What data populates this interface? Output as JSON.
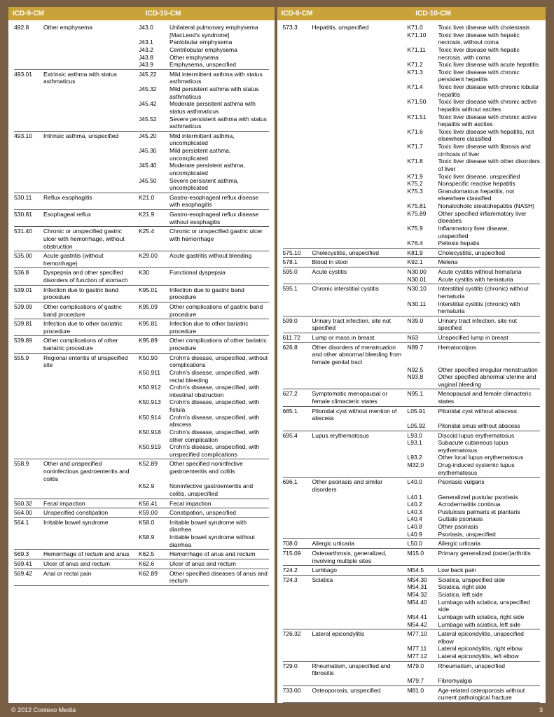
{
  "headers": {
    "icd9": "ICD-9-CM",
    "icd10": "ICD-10-CM"
  },
  "footer": {
    "copyright": "© 2012 Contexo Media",
    "page": "3"
  },
  "left": [
    {
      "icd9": "492.8",
      "icd9d": "Other emphysema",
      "map": [
        [
          "J43.0",
          "Unilateral pulmonary emphysema [MacLeod's syndrome]"
        ],
        [
          "J43.1",
          "Panlobular emphysema"
        ],
        [
          "J43.2",
          "Centrilobular emphysema"
        ],
        [
          "J43.8",
          "Other emphysema"
        ],
        [
          "J43.9",
          "Emphysema, unspecified"
        ]
      ]
    },
    {
      "icd9": "493.01",
      "icd9d": "Extrinsic asthma with status asthmaticus",
      "map": [
        [
          "J45.22",
          "Mild intermittent asthma with status asthmaticus"
        ],
        [
          "J45.32",
          "Mild persistent asthma with status asthmaticus"
        ],
        [
          "J45.42",
          "Moderate persistent asthma with status asthmaticus"
        ],
        [
          "J45.52",
          "Severe persistent asthma with status asthmaticus"
        ]
      ]
    },
    {
      "icd9": "493.10",
      "icd9d": "Intrinsic asthma, unspecified",
      "map": [
        [
          "J45.20",
          "Mild intermittent asthma, uncomplicated"
        ],
        [
          "J45.30",
          "Mild persistent asthma, uncomplicated"
        ],
        [
          "J45.40",
          "Moderate persistent asthma, uncomplicated"
        ],
        [
          "J45.50",
          "Severe persistent asthma, uncomplicated"
        ]
      ]
    },
    {
      "icd9": "530.11",
      "icd9d": "Reflux esophagitis",
      "map": [
        [
          "K21.0",
          "Gastro-esophageal reflux disease with esophagitis"
        ]
      ]
    },
    {
      "icd9": "530.81",
      "icd9d": "Esophageal reflux",
      "map": [
        [
          "K21.9",
          "Gastro-esophageal reflux disease without esophagitis"
        ]
      ]
    },
    {
      "icd9": "531.40",
      "icd9d": "Chronic or unspecified gastric ulcer with hemorrhage, without obstruction",
      "map": [
        [
          "K25.4",
          "Chronic or unspecified gastric ulcer with hemorrhage"
        ]
      ]
    },
    {
      "icd9": "535.00",
      "icd9d": "Acute gastritis (without hemorrhage)",
      "map": [
        [
          "K29.00",
          "Acute gastritis without bleeding"
        ]
      ]
    },
    {
      "icd9": "536.8",
      "icd9d": "Dyspepsia and other specified disorders of function of stomach",
      "map": [
        [
          "K30",
          "Functional dyspepsia"
        ]
      ]
    },
    {
      "icd9": "539.01",
      "icd9d": "Infection due to gastric band procedure",
      "map": [
        [
          "K95.01",
          "Infection due to gastric band procedure"
        ]
      ]
    },
    {
      "icd9": "539.09",
      "icd9d": "Other complications of gastric band procedure",
      "map": [
        [
          "K95.09",
          "Other complications of gastric band procedure"
        ]
      ]
    },
    {
      "icd9": "539.81",
      "icd9d": "Infection due to other bariatric procedure",
      "map": [
        [
          "K95.81",
          "Infection due to other bariatric procedure"
        ]
      ]
    },
    {
      "icd9": "539.89",
      "icd9d": "Other complications of other bariatric procedure",
      "map": [
        [
          "K95.89",
          "Other complications of other bariatric procedure"
        ]
      ]
    },
    {
      "icd9": "555.9",
      "icd9d": "Regional enteritis of unspecified site",
      "map": [
        [
          "K50.90",
          "Crohn's disease, unspecified, without complications"
        ],
        [
          "K50.911",
          "Crohn's disease, unspecified, with rectal bleeding"
        ],
        [
          "K50.912",
          "Crohn's disease, unspecified, with intestinal obstruction"
        ],
        [
          "K50.913",
          "Crohn's disease, unspecified, with fistula"
        ],
        [
          "K50.914",
          "Crohn's disease, unspecified, with abscess"
        ],
        [
          "K50.918",
          "Crohn's disease, unspecified, with other complication"
        ],
        [
          "K50.919",
          "Crohn's disease, unspecified, with unspecified complications"
        ]
      ]
    },
    {
      "icd9": "558.9",
      "icd9d": "Other and unspecified noninfectious gastroenteritis and colitis",
      "map": [
        [
          "K52.89",
          "Other specified noninfective gastroenteritis and colitis"
        ],
        [
          "K52.9",
          "Noninfective gastroenteritis and colitis, unspecified"
        ]
      ]
    },
    {
      "icd9": "560.32",
      "icd9d": "Fecal impaction",
      "map": [
        [
          "K56.41",
          "Fecal impaction"
        ]
      ]
    },
    {
      "icd9": "564.00",
      "icd9d": "Unspecified constipation",
      "map": [
        [
          "K59.00",
          "Constipation, unspecified"
        ]
      ]
    },
    {
      "icd9": "564.1",
      "icd9d": "Irritable bowel syndrome",
      "map": [
        [
          "K58.0",
          "Irritable bowel syndrome with diarrhea"
        ],
        [
          "K58.9",
          "Irritable bowel syndrome without diarrhea"
        ]
      ]
    },
    {
      "icd9": "569.3",
      "icd9d": "Hemorrhage of rectum and anus",
      "map": [
        [
          "K62.5",
          "Hemorrhage of anus and rectum"
        ]
      ]
    },
    {
      "icd9": "569.41",
      "icd9d": "Ulcer of anus and rectum",
      "map": [
        [
          "K62.6",
          "Ulcer of anus and rectum"
        ]
      ]
    },
    {
      "icd9": "569.42",
      "icd9d": "Anal or rectal pain",
      "map": [
        [
          "K62.89",
          "Other specified diseases of anus and rectum"
        ]
      ]
    }
  ],
  "right": [
    {
      "icd9": "573.3",
      "icd9d": "Hepatitis, unspecified",
      "map": [
        [
          "K71.0",
          "Toxic liver disease with cholestasis"
        ],
        [
          "K71.10",
          "Toxic liver disease with hepatic necrosis, without coma"
        ],
        [
          "K71.11",
          "Toxic liver disease with hepatic necrosis, with coma"
        ],
        [
          "K71.2",
          "Toxic liver disease with acute hepatitis"
        ],
        [
          "K71.3",
          "Toxic liver disease with chronic persistent hepatitis"
        ],
        [
          "K71.4",
          "Toxic liver disease with chronic lobular hepatitis"
        ],
        [
          "K71.50",
          "Toxic liver disease with chronic active hepatitis without ascites"
        ],
        [
          "K71.51",
          "Toxic liver disease with chronic active hepatitis with ascites"
        ],
        [
          "K71.6",
          "Toxic liver disease with hepatitis, not elsewhere classified"
        ],
        [
          "K71.7",
          "Toxic liver disease with fibrosis and cirrhosis of liver"
        ],
        [
          "K71.8",
          "Toxic liver disease with other disorders of liver"
        ],
        [
          "K71.9",
          "Toxic liver disease, unspecified"
        ],
        [
          "K75.2",
          "Nonspecific reactive hepatitis"
        ],
        [
          "K75.3",
          "Granulomatous hepatitis, not elsewhere classified"
        ],
        [
          "K75.81",
          "Nonalcoholic steatohepatitis (NASH)"
        ],
        [
          "K75.89",
          "Other specified inflammatory liver diseases"
        ],
        [
          "K75.9",
          "Inflammatory liver disease, unspecified"
        ],
        [
          "K76.4",
          "Peliosis hepatis"
        ]
      ]
    },
    {
      "icd9": "575.10",
      "icd9d": "Cholecystitis, unspecified",
      "map": [
        [
          "K81.9",
          "Cholecystitis, unspecified"
        ]
      ]
    },
    {
      "icd9": "578.1",
      "icd9d": "Blood in stool",
      "map": [
        [
          "K92.1",
          "Melena"
        ]
      ]
    },
    {
      "icd9": "595.0",
      "icd9d": "Acute cystitis",
      "map": [
        [
          "N30.00",
          "Acute cystitis without hematuria"
        ],
        [
          "N30.01",
          "Acute cystitis with hematuria"
        ]
      ]
    },
    {
      "icd9": "595.1",
      "icd9d": "Chronic interstitial cystitis",
      "map": [
        [
          "N30.10",
          "Interstitial cystitis (chronic) without hematuria"
        ],
        [
          "N30.11",
          "Interstitial cystitis (chronic) with hematuria"
        ]
      ]
    },
    {
      "icd9": "599.0",
      "icd9d": "Urinary tract infection, site not specified",
      "map": [
        [
          "N39.0",
          "Urinary tract infection, site not specified"
        ]
      ]
    },
    {
      "icd9": "611.72",
      "icd9d": "Lump or mass in breast",
      "map": [
        [
          "N63",
          "Unspecified lump in breast"
        ]
      ]
    },
    {
      "icd9": "626.8",
      "icd9d": "Other disorders of menstruation and other abnormal bleeding from female genital tract",
      "map": [
        [
          "N89.7",
          "Hematocolpos"
        ],
        [
          "N92.5",
          "Other specified irregular menstruation"
        ],
        [
          "N93.8",
          "Other specified abnormal uterine and vaginal bleeding"
        ]
      ]
    },
    {
      "icd9": "627.2",
      "icd9d": "Symptomatic menopausal or female climacteric states",
      "map": [
        [
          "N95.1",
          "Menopausal and female climacteric states"
        ]
      ]
    },
    {
      "icd9": "685.1",
      "icd9d": "Pilonidal cyst without mention of abscess",
      "map": [
        [
          "L05.91",
          "Pilonidal cyst without abscess"
        ],
        [
          "L05.92",
          "Pilonidal sinus without abscess"
        ]
      ]
    },
    {
      "icd9": "695.4",
      "icd9d": "Lupus erythematosus",
      "map": [
        [
          "L93.0",
          "Discoid lupus erythematosus"
        ],
        [
          "L93.1",
          "Subacute cutaneous lupus erythematosus"
        ],
        [
          "L93.2",
          "Other local lupus erythematosus"
        ],
        [
          "M32.0",
          "Drug-induced systemic lupus erythematosus"
        ]
      ]
    },
    {
      "icd9": "696.1",
      "icd9d": "Other psoriasis and similar disorders",
      "map": [
        [
          "L40.0",
          "Psoriasis vulgaris"
        ],
        [
          "L40.1",
          "Generalized pustular psoriasis"
        ],
        [
          "L40.2",
          "Acrodermatitis continua"
        ],
        [
          "L40.3",
          "Pustulosis palmaris et plantaris"
        ],
        [
          "L40.4",
          "Guttate psoriasis"
        ],
        [
          "L40.8",
          "Other psoriasis"
        ],
        [
          "L40.9",
          "Psoriasis, unspecified"
        ]
      ]
    },
    {
      "icd9": "708.0",
      "icd9d": "Allergic urticaria",
      "map": [
        [
          "L50.0",
          "Allergic urticaria"
        ]
      ]
    },
    {
      "icd9": "715.09",
      "icd9d": "Osteoarthrosis, generalized, involving multiple sites",
      "map": [
        [
          "M15.0",
          "Primary generalized (osteo)arthritis"
        ]
      ]
    },
    {
      "icd9": "724.2",
      "icd9d": "Lumbago",
      "map": [
        [
          "M54.5",
          "Low back pain"
        ]
      ]
    },
    {
      "icd9": "724.3",
      "icd9d": "Sciatica",
      "map": [
        [
          "M54.30",
          "Sciatica, unspecified side"
        ],
        [
          "M54.31",
          "Sciatica, right side"
        ],
        [
          "M54.32",
          "Sciatica, left side"
        ],
        [
          "M54.40",
          "Lumbago with sciatica, unspecified side"
        ],
        [
          "M54.41",
          "Lumbago with sciatica, right side"
        ],
        [
          "M54.42",
          "Lumbago with sciatica, left side"
        ]
      ]
    },
    {
      "icd9": "726.32",
      "icd9d": "Lateral epicondylitis",
      "map": [
        [
          "M77.10",
          "Lateral epicondylitis, unspecified elbow"
        ],
        [
          "M77.11",
          "Lateral epicondylitis, right elbow"
        ],
        [
          "M77.12",
          "Lateral epicondylitis, left elbow"
        ]
      ]
    },
    {
      "icd9": "729.0",
      "icd9d": "Rheumatism, unspecified and fibrositis",
      "map": [
        [
          "M79.0",
          "Rheumatism, unspecified"
        ],
        [
          "M79.7",
          "Fibromyalgia"
        ]
      ]
    },
    {
      "icd9": "733.00",
      "icd9d": "Osteoporosis, unspecified",
      "map": [
        [
          "M81.0",
          "Age-related osteoporosis without current pathological fracture"
        ]
      ]
    }
  ]
}
